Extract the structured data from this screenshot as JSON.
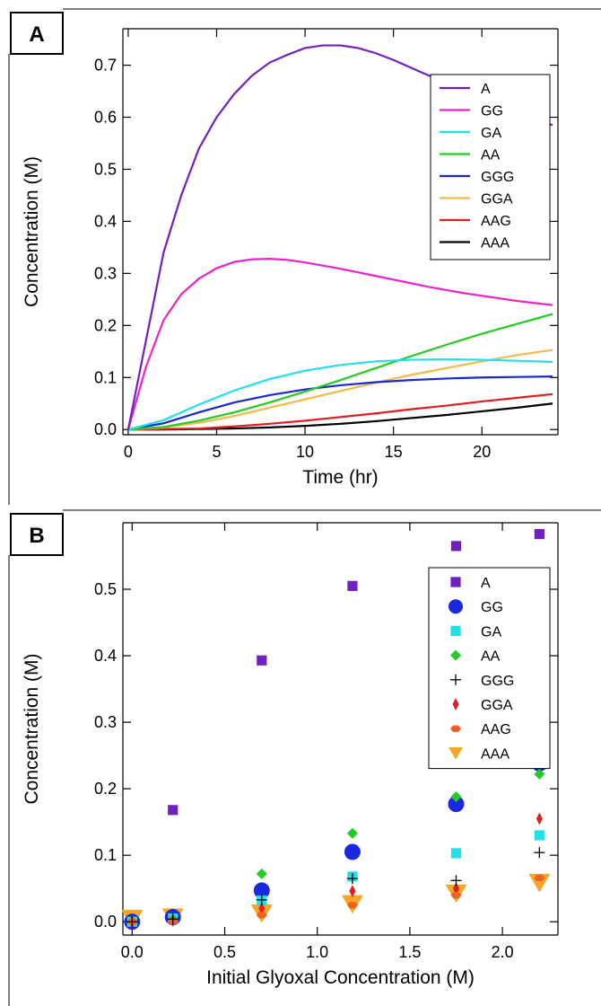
{
  "chart_data": [
    {
      "panel": "A",
      "type": "line",
      "title": "",
      "xlabel": "Time (hr)",
      "ylabel": "Concentration (M)",
      "xlim": [
        -0.3,
        24.3
      ],
      "ylim": [
        -0.01,
        0.77
      ],
      "xticks": [
        0,
        5,
        10,
        15,
        20
      ],
      "yticks": [
        0.0,
        0.1,
        0.2,
        0.3,
        0.4,
        0.5,
        0.6,
        0.7
      ],
      "grid": false,
      "legend_position": "top-right",
      "series": [
        {
          "name": "A",
          "color": "#7020c0",
          "x": [
            0,
            1,
            2,
            3,
            4,
            5,
            6,
            7,
            8,
            9,
            10,
            11,
            12,
            13,
            14,
            15,
            16,
            17,
            18,
            19,
            20,
            21,
            22,
            23,
            24
          ],
          "y": [
            0.0,
            0.17,
            0.34,
            0.45,
            0.54,
            0.6,
            0.645,
            0.68,
            0.705,
            0.72,
            0.733,
            0.738,
            0.738,
            0.733,
            0.723,
            0.71,
            0.695,
            0.68,
            0.665,
            0.65,
            0.635,
            0.62,
            0.607,
            0.595,
            0.585
          ]
        },
        {
          "name": "GG",
          "color": "#ee22cc",
          "x": [
            0,
            1,
            2,
            3,
            4,
            5,
            6,
            7,
            8,
            9,
            10,
            11,
            12,
            13,
            14,
            15,
            16,
            17,
            18,
            19,
            20,
            21,
            22,
            23,
            24
          ],
          "y": [
            0.0,
            0.12,
            0.21,
            0.26,
            0.29,
            0.31,
            0.322,
            0.327,
            0.328,
            0.326,
            0.321,
            0.315,
            0.309,
            0.302,
            0.295,
            0.288,
            0.281,
            0.274,
            0.268,
            0.262,
            0.257,
            0.252,
            0.247,
            0.243,
            0.239
          ]
        },
        {
          "name": "GA",
          "color": "#22e0e8",
          "x": [
            0,
            2,
            4,
            6,
            8,
            10,
            12,
            14,
            16,
            18,
            20,
            22,
            24
          ],
          "y": [
            0.0,
            0.018,
            0.048,
            0.075,
            0.097,
            0.113,
            0.124,
            0.131,
            0.134,
            0.135,
            0.134,
            0.132,
            0.13
          ]
        },
        {
          "name": "AA",
          "color": "#22cc22",
          "x": [
            0,
            2,
            4,
            6,
            8,
            10,
            12,
            14,
            16,
            18,
            20,
            22,
            24
          ],
          "y": [
            0.0,
            0.005,
            0.017,
            0.033,
            0.052,
            0.073,
            0.095,
            0.118,
            0.141,
            0.163,
            0.184,
            0.203,
            0.222
          ]
        },
        {
          "name": "GGG",
          "color": "#1a28cc",
          "x": [
            0,
            2,
            4,
            6,
            8,
            10,
            12,
            14,
            16,
            18,
            20,
            22,
            24
          ],
          "y": [
            0.0,
            0.012,
            0.033,
            0.052,
            0.066,
            0.077,
            0.085,
            0.091,
            0.095,
            0.098,
            0.1,
            0.101,
            0.102
          ]
        },
        {
          "name": "GGA",
          "color": "#f5b84a",
          "x": [
            0,
            2,
            4,
            6,
            8,
            10,
            12,
            14,
            16,
            18,
            20,
            22,
            24
          ],
          "y": [
            0.0,
            0.004,
            0.013,
            0.026,
            0.042,
            0.058,
            0.074,
            0.09,
            0.105,
            0.118,
            0.131,
            0.143,
            0.153
          ]
        },
        {
          "name": "AAG",
          "color": "#e02020",
          "x": [
            0,
            2,
            4,
            6,
            8,
            10,
            12,
            14,
            16,
            18,
            20,
            22,
            24
          ],
          "y": [
            0.0,
            0.001,
            0.002,
            0.006,
            0.011,
            0.017,
            0.024,
            0.031,
            0.039,
            0.046,
            0.054,
            0.061,
            0.068
          ]
        },
        {
          "name": "AAA",
          "color": "#000000",
          "x": [
            0,
            2,
            4,
            6,
            8,
            10,
            12,
            14,
            16,
            18,
            20,
            22,
            24
          ],
          "y": [
            0.0,
            0.0,
            0.001,
            0.002,
            0.004,
            0.007,
            0.011,
            0.016,
            0.022,
            0.028,
            0.035,
            0.042,
            0.05
          ]
        }
      ]
    },
    {
      "panel": "B",
      "type": "scatter",
      "title": "",
      "xlabel": "Initial Glyoxal Concentration (M)",
      "ylabel": "Concentration (M)",
      "xlim": [
        -0.05,
        2.3
      ],
      "ylim": [
        -0.02,
        0.6
      ],
      "xticks": [
        0.0,
        0.5,
        1.0,
        1.5,
        2.0
      ],
      "xtick_labels": [
        "0.0",
        "0.5",
        "1.0",
        "1.5",
        "2.0"
      ],
      "yticks": [
        0.0,
        0.1,
        0.2,
        0.3,
        0.4,
        0.5
      ],
      "grid": false,
      "legend_position": "top-right",
      "series": [
        {
          "name": "A",
          "marker": "square",
          "color": "#7020c0",
          "x": [
            0.0,
            0.22,
            0.7,
            1.19,
            1.75,
            2.2
          ],
          "y": [
            0.0,
            0.168,
            0.393,
            0.505,
            0.565,
            0.583
          ]
        },
        {
          "name": "GG",
          "marker": "circle",
          "color": "#1a28e0",
          "x": [
            0.0,
            0.22,
            0.7,
            1.19,
            1.75,
            2.2
          ],
          "y": [
            0.0,
            0.007,
            0.047,
            0.105,
            0.177,
            0.238
          ]
        },
        {
          "name": "GA",
          "marker": "square",
          "color": "#22e0e8",
          "x": [
            0.0,
            0.22,
            0.7,
            1.19,
            1.75,
            2.2
          ],
          "y": [
            0.0,
            0.005,
            0.032,
            0.068,
            0.103,
            0.13
          ]
        },
        {
          "name": "AA",
          "marker": "diamond",
          "color": "#22cc22",
          "x": [
            0.0,
            0.22,
            0.7,
            1.19,
            1.75,
            2.2
          ],
          "y": [
            0.0,
            0.004,
            0.072,
            0.133,
            0.188,
            0.222
          ]
        },
        {
          "name": "GGG",
          "marker": "plus",
          "color": "#000000",
          "x": [
            0.0,
            0.22,
            0.7,
            1.19,
            1.75,
            2.2
          ],
          "y": [
            0.0,
            0.004,
            0.033,
            0.065,
            0.062,
            0.104
          ]
        },
        {
          "name": "GGA",
          "marker": "thin-diamond",
          "color": "#e02020",
          "x": [
            0.0,
            0.22,
            0.7,
            1.19,
            1.75,
            2.2
          ],
          "y": [
            0.0,
            0.002,
            0.02,
            0.046,
            0.05,
            0.155
          ]
        },
        {
          "name": "AAG",
          "marker": "hexagon",
          "color": "#f06020",
          "x": [
            0.0,
            0.22,
            0.7,
            1.19,
            1.75,
            2.2
          ],
          "y": [
            0.0,
            0.001,
            0.01,
            0.025,
            0.04,
            0.066
          ]
        },
        {
          "name": "AAA",
          "marker": "triangle-down",
          "color": "#f5a623",
          "x": [
            0.0,
            0.22,
            0.7,
            1.19,
            1.75,
            2.2
          ],
          "y": [
            0.005,
            0.007,
            0.013,
            0.027,
            0.043,
            0.059
          ]
        }
      ]
    }
  ]
}
